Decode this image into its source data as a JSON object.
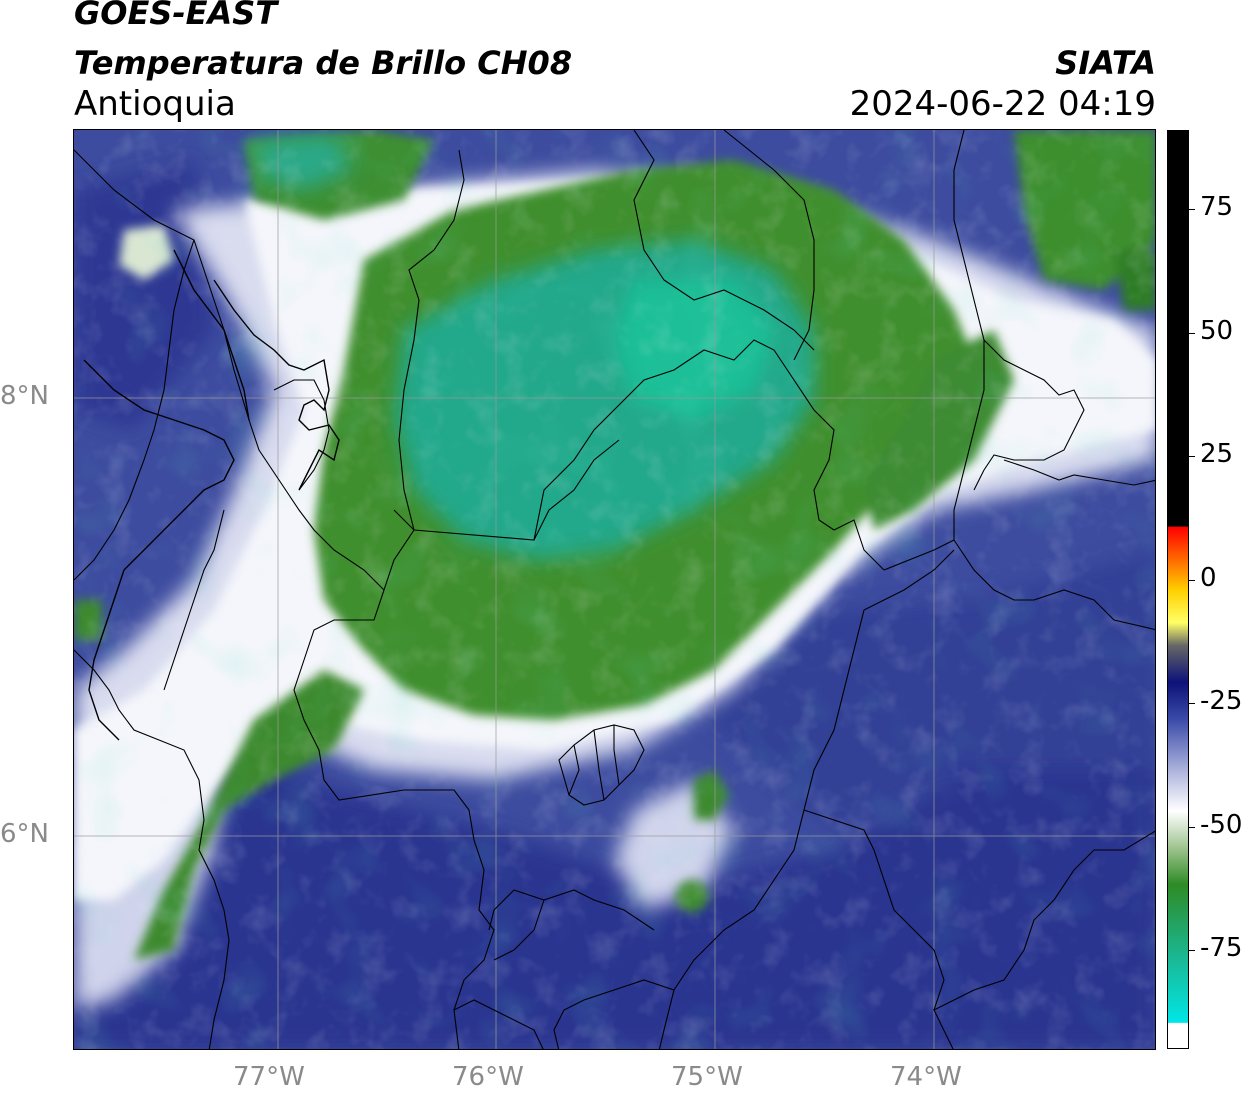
{
  "header": {
    "satellite": "GOES-EAST",
    "product": "Temperatura de Brillo CH08",
    "region": "Antioquia",
    "organization": "SIATA",
    "timestamp": "2024-06-22 04:19"
  },
  "map": {
    "longitude_ticks": [
      "77°W",
      "76°W",
      "75°W",
      "74°W"
    ],
    "latitude_ticks": [
      "8°N",
      "6°N"
    ],
    "extent": {
      "lon_min": -77.94,
      "lon_max": -72.99,
      "lat_min": 5.03,
      "lat_max": 9.23
    }
  },
  "colorbar": {
    "ticks": [
      "75",
      "50",
      "25",
      "0",
      "-25",
      "-50",
      "-75"
    ],
    "tick_values": [
      75,
      50,
      25,
      0,
      -25,
      -50,
      -75
    ],
    "range": [
      -95,
      91
    ],
    "colors": {
      "warm": "#000000",
      "red": "#ff0000",
      "orange": "#ff8c00",
      "yellow": "#ffff00",
      "navy": "#0d1278",
      "blue": "#4b5aa8",
      "white": "#ffffff",
      "green": "#2e8b25",
      "teal": "#1ab894",
      "cyan": "#00e6e6"
    }
  },
  "colors": {
    "cold_cloud_green": "#3f8f2f",
    "cloud_core_teal": "#22a88a",
    "clear_blue": "#3a4a9e",
    "deep_blue": "#252e87",
    "edge_white": "#f4f6fb"
  }
}
